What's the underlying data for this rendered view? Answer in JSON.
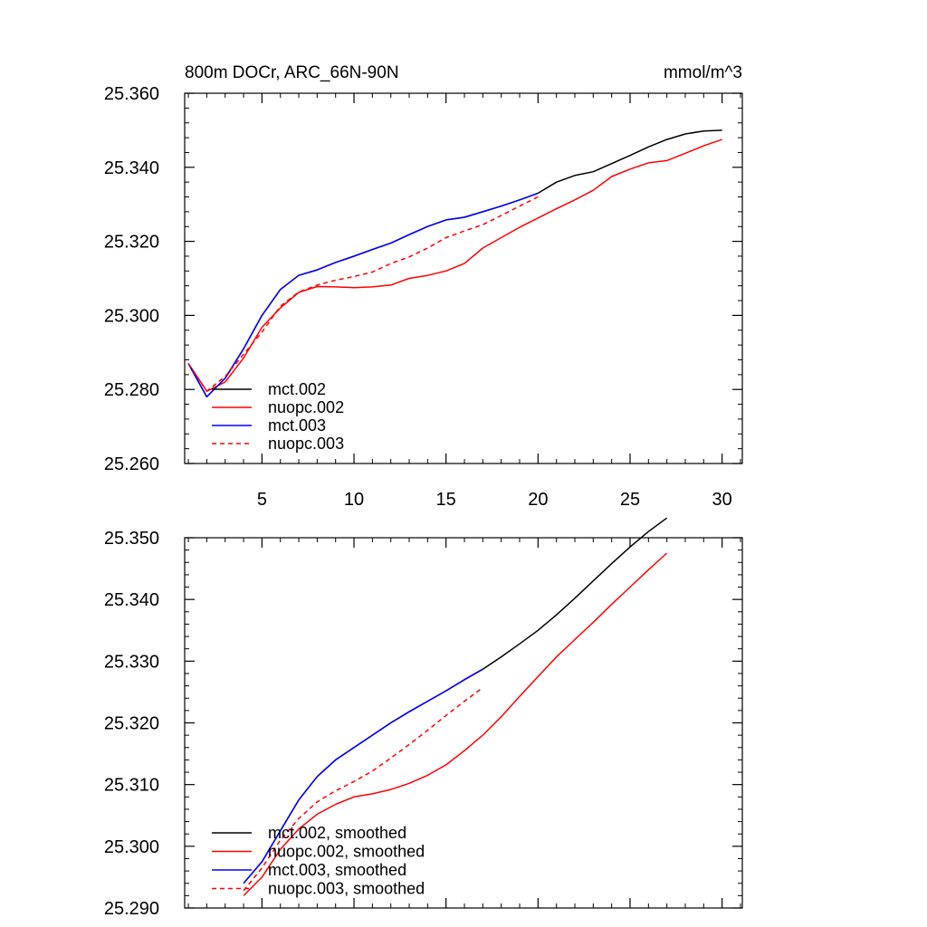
{
  "figure": {
    "title": "800m DOCr, ARC_66N-90N",
    "units": "mmol/m^3"
  },
  "chart_data": [
    {
      "type": "line",
      "title": "800m DOCr, ARC_66N-90N",
      "units_label": "mmol/m^3",
      "xlabel": "",
      "ylabel": "",
      "xlim": [
        0.8,
        31.1
      ],
      "ylim": [
        25.26,
        25.36
      ],
      "xticks": [
        5,
        10,
        15,
        20,
        25,
        30
      ],
      "xtick_labels": [
        "5",
        "10",
        "15",
        "20",
        "25",
        "30"
      ],
      "yticks": [
        25.26,
        25.28,
        25.3,
        25.32,
        25.34,
        25.36
      ],
      "ytick_labels": [
        "25.260",
        "25.280",
        "25.300",
        "25.320",
        "25.340",
        "25.360"
      ],
      "grid": false,
      "legend_position": "bottom-left",
      "series": [
        {
          "name": "mct.002",
          "color": "#000000",
          "dash": "solid",
          "x": [
            1,
            2,
            3,
            4,
            5,
            6,
            7,
            8,
            9,
            10,
            11,
            12,
            13,
            14,
            15,
            16,
            17,
            18,
            19,
            20,
            21,
            22,
            23,
            24,
            25,
            26,
            27,
            28,
            29,
            30
          ],
          "y": [
            25.287,
            25.278,
            25.283,
            25.291,
            25.3,
            25.307,
            25.3108,
            25.3123,
            25.3143,
            25.316,
            25.3178,
            25.3195,
            25.3218,
            25.324,
            25.3258,
            25.3265,
            25.328,
            25.3295,
            25.3312,
            25.333,
            25.336,
            25.3378,
            25.3388,
            25.341,
            25.3432,
            25.3455,
            25.3475,
            25.349,
            25.3498,
            25.35
          ]
        },
        {
          "name": "nuopc.002",
          "color": "#ff0000",
          "dash": "solid",
          "x": [
            1,
            2,
            3,
            4,
            5,
            6,
            7,
            8,
            9,
            10,
            11,
            12,
            13,
            14,
            15,
            16,
            17,
            18,
            19,
            20,
            21,
            22,
            23,
            24,
            25,
            26,
            27,
            28,
            29,
            30
          ],
          "y": [
            25.287,
            25.2795,
            25.282,
            25.2885,
            25.2968,
            25.302,
            25.3062,
            25.3078,
            25.3077,
            25.3075,
            25.3077,
            25.3082,
            25.31,
            25.3108,
            25.312,
            25.314,
            25.3182,
            25.321,
            25.3238,
            25.3263,
            25.3288,
            25.3312,
            25.3338,
            25.3375,
            25.3395,
            25.3412,
            25.3418,
            25.3438,
            25.3458,
            25.3475
          ]
        },
        {
          "name": "mct.003",
          "color": "#0000ff",
          "dash": "solid",
          "x": [
            1,
            2,
            3,
            4,
            5,
            6,
            7,
            8,
            9,
            10,
            11,
            12,
            13,
            14,
            15,
            16,
            17,
            18,
            19,
            20
          ],
          "y": [
            25.287,
            25.278,
            25.283,
            25.291,
            25.3,
            25.307,
            25.3108,
            25.3123,
            25.3143,
            25.316,
            25.3178,
            25.3195,
            25.3218,
            25.324,
            25.3258,
            25.3265,
            25.328,
            25.3295,
            25.3312,
            25.333
          ]
        },
        {
          "name": "nuopc.003",
          "color": "#ff0000",
          "dash": "dashed",
          "x": [
            1,
            2,
            3,
            4,
            5,
            6,
            7,
            8,
            9,
            10,
            11,
            12,
            13,
            14,
            15,
            16,
            17,
            18,
            19,
            20
          ],
          "y": [
            25.287,
            25.2795,
            25.2835,
            25.2895,
            25.2955,
            25.3025,
            25.3063,
            25.3082,
            25.3095,
            25.3105,
            25.3117,
            25.314,
            25.3158,
            25.3182,
            25.321,
            25.3228,
            25.3245,
            25.327,
            25.3295,
            25.332
          ]
        }
      ]
    },
    {
      "type": "line",
      "title": "",
      "xlabel": "",
      "ylabel": "",
      "xlim": [
        0.8,
        31.1
      ],
      "ylim": [
        25.29,
        25.35
      ],
      "xticks": [
        5,
        10,
        15,
        20,
        25,
        30
      ],
      "xtick_labels": [],
      "yticks": [
        25.29,
        25.3,
        25.31,
        25.32,
        25.33,
        25.34,
        25.35
      ],
      "ytick_labels": [
        "25.290",
        "25.300",
        "25.310",
        "25.320",
        "25.330",
        "25.340",
        "25.350"
      ],
      "grid": false,
      "legend_position": "bottom-left",
      "series": [
        {
          "name": "mct.002, smoothed",
          "color": "#000000",
          "dash": "solid",
          "x": [
            4,
            5,
            6,
            7,
            8,
            9,
            10,
            11,
            12,
            13,
            14,
            15,
            16,
            17,
            18,
            19,
            20,
            21,
            22,
            23,
            24,
            25,
            26,
            27
          ],
          "y": [
            25.294,
            25.2975,
            25.3025,
            25.3075,
            25.3113,
            25.314,
            25.316,
            25.318,
            25.32,
            25.3218,
            25.3235,
            25.3252,
            25.327,
            25.3287,
            25.3307,
            25.3328,
            25.335,
            25.3375,
            25.3402,
            25.343,
            25.3458,
            25.3485,
            25.351,
            25.3532
          ]
        },
        {
          "name": "nuopc.002, smoothed",
          "color": "#ff0000",
          "dash": "solid",
          "x": [
            4,
            5,
            6,
            7,
            8,
            9,
            10,
            11,
            12,
            13,
            14,
            15,
            16,
            17,
            18,
            19,
            20,
            21,
            22,
            23,
            24,
            25,
            26,
            27
          ],
          "y": [
            25.292,
            25.295,
            25.2995,
            25.3028,
            25.3052,
            25.3068,
            25.308,
            25.3085,
            25.3092,
            25.3102,
            25.3115,
            25.3132,
            25.3155,
            25.318,
            25.321,
            25.3243,
            25.3275,
            25.3307,
            25.3335,
            25.3363,
            25.3392,
            25.342,
            25.3448,
            25.3475
          ]
        },
        {
          "name": "mct.003, smoothed",
          "color": "#0000ff",
          "dash": "solid",
          "x": [
            4,
            5,
            6,
            7,
            8,
            9,
            10,
            11,
            12,
            13,
            14,
            15,
            16,
            17
          ],
          "y": [
            25.294,
            25.2975,
            25.3025,
            25.3075,
            25.3113,
            25.314,
            25.316,
            25.318,
            25.32,
            25.3218,
            25.3235,
            25.3252,
            25.327,
            25.3287
          ]
        },
        {
          "name": "nuopc.003, smoothed",
          "color": "#ff0000",
          "dash": "dashed",
          "x": [
            4,
            5,
            6,
            7,
            8,
            9,
            10,
            11,
            12,
            13,
            14,
            15,
            16,
            17
          ],
          "y": [
            25.2928,
            25.2965,
            25.301,
            25.3045,
            25.3072,
            25.309,
            25.3105,
            25.3122,
            25.3143,
            25.3165,
            25.3188,
            25.3212,
            25.3235,
            25.3257
          ]
        }
      ]
    }
  ]
}
